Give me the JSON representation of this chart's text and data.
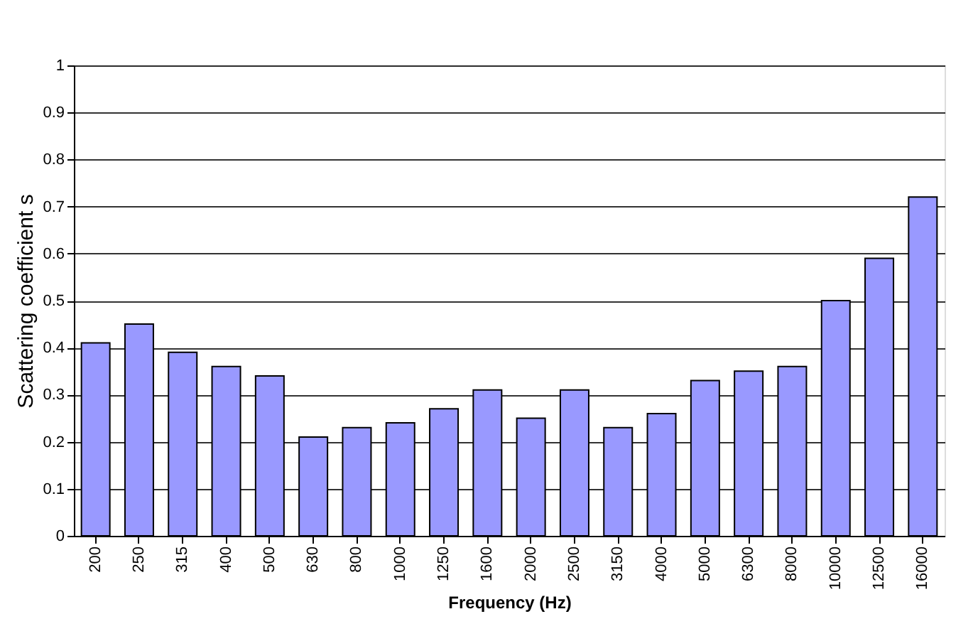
{
  "chart_data": {
    "type": "bar",
    "xlabel": "Frequency (Hz)",
    "ylabel": "Scattering coefficient s",
    "categories": [
      "200",
      "250",
      "315",
      "400",
      "500",
      "630",
      "800",
      "1000",
      "1250",
      "1600",
      "2000",
      "2500",
      "3150",
      "4000",
      "5000",
      "6300",
      "8000",
      "10000",
      "12500",
      "16000"
    ],
    "series": [
      {
        "color": "#9999ff",
        "values": [
          0.41,
          0.45,
          0.39,
          0.36,
          0.34,
          0.21,
          0.23,
          0.24,
          0.27,
          0.31,
          0.25,
          0.31,
          0.23,
          0.26,
          0.33,
          0.35,
          0.36,
          0.5,
          0.59,
          0.72
        ]
      }
    ],
    "ylim": [
      0,
      1
    ],
    "yticks": [
      0,
      0.1,
      0.2,
      0.3,
      0.4,
      0.5,
      0.6,
      0.7,
      0.8,
      0.9,
      1
    ],
    "grid": "y",
    "legend": false
  }
}
